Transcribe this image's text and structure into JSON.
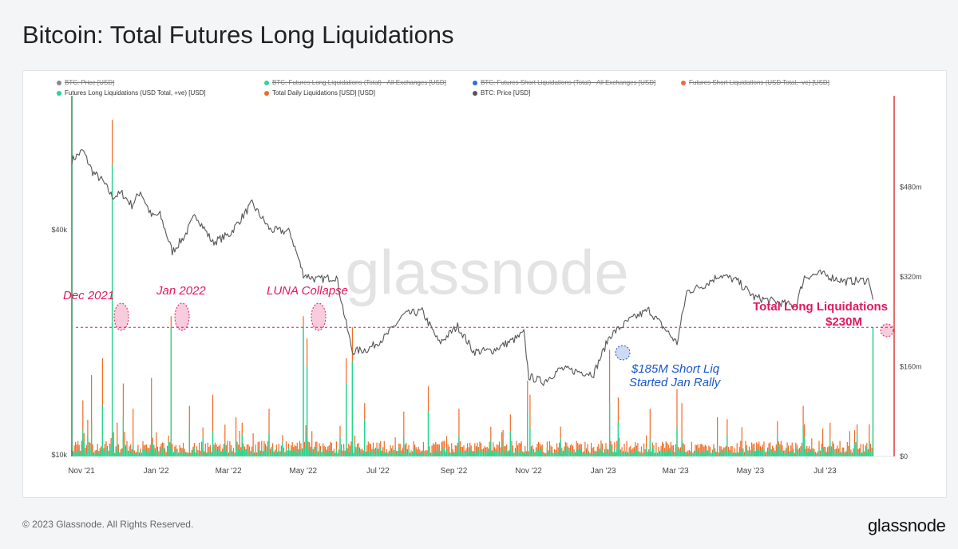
{
  "title": "Bitcoin: Total Futures Long Liquidations",
  "footer": {
    "copyright": "© 2023 Glassnode. All Rights Reserved.",
    "logo": "glassnode"
  },
  "watermark": "glassnode",
  "legend": [
    {
      "label": "BTC: Price [USD]",
      "color": "#888888",
      "enabled": false
    },
    {
      "label": "BTC: Futures Long Liquidations (Total) - All Exchanges [USD]",
      "color": "#2ed3a0",
      "enabled": false
    },
    {
      "label": "BTC: Futures Short Liquidations (Total) - All Exchanges [USD]",
      "color": "#2f6fd6",
      "enabled": false
    },
    {
      "label": "Futures Short Liquidations (USD Total, -ve) [USD]",
      "color": "#e86a4a",
      "enabled": false
    },
    {
      "label": "Futures Long Liquidations (USD Total, +ve) [USD]",
      "color": "#27d592",
      "enabled": true
    },
    {
      "label": "Total Daily Liquidations [USD] [USD]",
      "color": "#f06a24",
      "enabled": true
    },
    {
      "label": "BTC: Price [USD]",
      "color": "#555555",
      "enabled": true
    }
  ],
  "annotations": {
    "dec2021": "Dec 2021",
    "jan2022": "Jan 2022",
    "luna": "LUNA Collapse",
    "total_long_line1": "Total Long Liquidations",
    "total_long_line2": "$230M",
    "short_liq_line1": "$185M Short Liq",
    "short_liq_line2": "Started Jan Rally"
  },
  "colors": {
    "annotation_pink": "#e0185f",
    "annotation_blue": "#1a57c8",
    "price_line": "#555555",
    "long_liq": "#27d592",
    "total_liq": "#f06a24",
    "left_axis": "#2e8b57",
    "right_axis": "#e03a3a"
  },
  "chart_data": {
    "type": "line",
    "title": "Bitcoin: Total Futures Long Liquidations",
    "x_ticks": [
      "Nov '21",
      "Jan '22",
      "Mar '22",
      "May '22",
      "Jul '22",
      "Sep '22",
      "Nov '22",
      "Jan '23",
      "Mar '23",
      "May '23",
      "Jul '23"
    ],
    "x_range": [
      "2021-11-01",
      "2023-08-31"
    ],
    "y_left": {
      "scale": "log",
      "ticks": [
        "$10k",
        "$40k"
      ],
      "range": [
        10000,
        90000
      ]
    },
    "y_right": {
      "scale": "linear",
      "ticks": [
        "$0",
        "$160m",
        "$320m",
        "$480m"
      ],
      "range": [
        0,
        640
      ]
    },
    "reference_line": 230,
    "series": [
      {
        "name": "BTC: Price [USD]",
        "axis": "left",
        "type": "line",
        "points": [
          [
            "2021-11-01",
            61300
          ],
          [
            "2021-11-10",
            65000
          ],
          [
            "2021-11-18",
            57000
          ],
          [
            "2021-11-26",
            54000
          ],
          [
            "2021-12-04",
            49000
          ],
          [
            "2021-12-12",
            50000
          ],
          [
            "2021-12-20",
            46500
          ],
          [
            "2021-12-27",
            50700
          ],
          [
            "2022-01-05",
            43500
          ],
          [
            "2022-01-12",
            43900
          ],
          [
            "2022-01-22",
            35000
          ],
          [
            "2022-02-01",
            38500
          ],
          [
            "2022-02-10",
            44000
          ],
          [
            "2022-02-24",
            37000
          ],
          [
            "2022-03-10",
            39000
          ],
          [
            "2022-03-28",
            47000
          ],
          [
            "2022-04-12",
            40000
          ],
          [
            "2022-04-28",
            39500
          ],
          [
            "2022-05-09",
            30500
          ],
          [
            "2022-05-20",
            29500
          ],
          [
            "2022-06-05",
            30000
          ],
          [
            "2022-06-13",
            22500
          ],
          [
            "2022-06-18",
            19000
          ],
          [
            "2022-07-01",
            19300
          ],
          [
            "2022-07-15",
            20800
          ],
          [
            "2022-07-30",
            23800
          ],
          [
            "2022-08-14",
            24300
          ],
          [
            "2022-08-28",
            20000
          ],
          [
            "2022-09-12",
            22200
          ],
          [
            "2022-09-25",
            19000
          ],
          [
            "2022-10-10",
            19100
          ],
          [
            "2022-10-30",
            20600
          ],
          [
            "2022-11-05",
            21300
          ],
          [
            "2022-11-09",
            16300
          ],
          [
            "2022-11-21",
            15800
          ],
          [
            "2022-12-05",
            17100
          ],
          [
            "2022-12-20",
            16800
          ],
          [
            "2023-01-01",
            16600
          ],
          [
            "2023-01-14",
            20900
          ],
          [
            "2023-01-30",
            23000
          ],
          [
            "2023-02-15",
            24500
          ],
          [
            "2023-03-10",
            20000
          ],
          [
            "2023-03-18",
            27400
          ],
          [
            "2023-04-01",
            28500
          ],
          [
            "2023-04-14",
            30400
          ],
          [
            "2023-04-28",
            29300
          ],
          [
            "2023-05-12",
            26500
          ],
          [
            "2023-06-15",
            25100
          ],
          [
            "2023-06-22",
            30000
          ],
          [
            "2023-07-05",
            30600
          ],
          [
            "2023-07-25",
            29200
          ],
          [
            "2023-08-14",
            29400
          ],
          [
            "2023-08-17",
            26100
          ]
        ]
      },
      {
        "name": "Total Daily Liquidations [USD] [USD]",
        "axis": "right",
        "type": "bar",
        "peaks": [
          [
            "2021-11-10",
            100
          ],
          [
            "2021-11-17",
            145
          ],
          [
            "2021-11-26",
            175
          ],
          [
            "2021-12-04",
            600
          ],
          [
            "2021-12-13",
            130
          ],
          [
            "2021-12-21",
            85
          ],
          [
            "2022-01-05",
            140
          ],
          [
            "2022-01-21",
            250
          ],
          [
            "2022-02-05",
            90
          ],
          [
            "2022-02-24",
            110
          ],
          [
            "2022-03-15",
            70
          ],
          [
            "2022-04-11",
            85
          ],
          [
            "2022-05-09",
            250
          ],
          [
            "2022-05-12",
            210
          ],
          [
            "2022-06-13",
            175
          ],
          [
            "2022-06-18",
            230
          ],
          [
            "2022-06-28",
            95
          ],
          [
            "2022-07-30",
            80
          ],
          [
            "2022-08-19",
            125
          ],
          [
            "2022-09-13",
            85
          ],
          [
            "2022-10-25",
            75
          ],
          [
            "2022-11-08",
            135
          ],
          [
            "2022-11-10",
            110
          ],
          [
            "2023-01-14",
            190
          ],
          [
            "2023-01-21",
            105
          ],
          [
            "2023-02-16",
            85
          ],
          [
            "2023-03-10",
            120
          ],
          [
            "2023-03-14",
            95
          ],
          [
            "2023-04-12",
            70
          ],
          [
            "2023-06-21",
            90
          ],
          [
            "2023-07-13",
            60
          ],
          [
            "2023-08-17",
            230
          ]
        ]
      },
      {
        "name": "Futures Long Liquidations (USD Total, +ve) [USD]",
        "axis": "right",
        "type": "bar",
        "peaks": [
          [
            "2021-11-17",
            60
          ],
          [
            "2021-11-26",
            90
          ],
          [
            "2021-12-04",
            520
          ],
          [
            "2021-12-13",
            70
          ],
          [
            "2022-01-05",
            60
          ],
          [
            "2022-01-21",
            230
          ],
          [
            "2022-02-24",
            45
          ],
          [
            "2022-05-09",
            230
          ],
          [
            "2022-05-12",
            160
          ],
          [
            "2022-06-13",
            130
          ],
          [
            "2022-06-18",
            170
          ],
          [
            "2022-08-19",
            80
          ],
          [
            "2022-11-08",
            80
          ],
          [
            "2022-11-10",
            50
          ],
          [
            "2023-03-10",
            50
          ],
          [
            "2023-08-17",
            230
          ]
        ]
      }
    ]
  }
}
